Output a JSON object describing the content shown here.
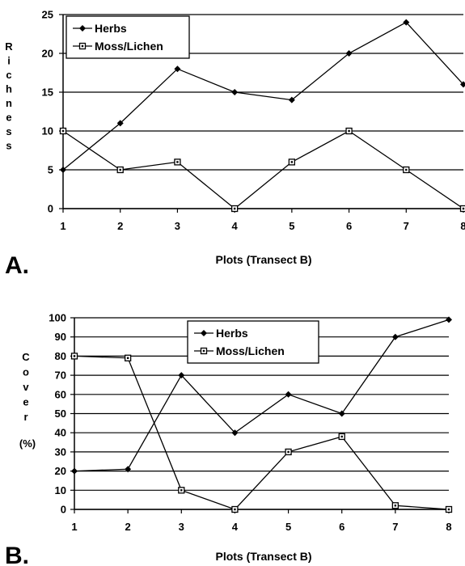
{
  "chart_data": [
    {
      "panel": "A.",
      "type": "line",
      "xlabel": "Plots (Transect B)",
      "ylabel": "Richness",
      "x": [
        1,
        2,
        3,
        4,
        5,
        6,
        7,
        8
      ],
      "xticks": [
        "1",
        "2",
        "3",
        "4",
        "5",
        "6",
        "7",
        "8"
      ],
      "yticks": [
        "0",
        "5",
        "10",
        "15",
        "20",
        "25"
      ],
      "ylim": [
        0,
        25
      ],
      "grid": "horizontal",
      "legend_position": "top-left",
      "series": [
        {
          "name": "Herbs",
          "marker": "filled-diamond",
          "values": [
            5,
            11,
            18,
            15,
            14,
            20,
            24,
            16
          ]
        },
        {
          "name": "Moss/Lichen",
          "marker": "open-square",
          "values": [
            10,
            5,
            6,
            0,
            6,
            10,
            5,
            0
          ]
        }
      ]
    },
    {
      "panel": "B.",
      "type": "line",
      "xlabel": "Plots (Transect B)",
      "ylabel": "Cover",
      "ylabel_unit": "(%)",
      "x": [
        1,
        2,
        3,
        4,
        5,
        6,
        7,
        8
      ],
      "xticks": [
        "1",
        "2",
        "3",
        "4",
        "5",
        "6",
        "7",
        "8"
      ],
      "yticks": [
        "0",
        "10",
        "20",
        "30",
        "40",
        "50",
        "60",
        "70",
        "80",
        "90",
        "100"
      ],
      "ylim": [
        0,
        100
      ],
      "grid": "horizontal",
      "legend_position": "top-center",
      "series": [
        {
          "name": "Herbs",
          "marker": "filled-diamond",
          "values": [
            20,
            21,
            70,
            40,
            60,
            50,
            90,
            99
          ]
        },
        {
          "name": "Moss/Lichen",
          "marker": "open-square",
          "values": [
            80,
            79,
            10,
            0,
            30,
            38,
            2,
            0
          ]
        }
      ]
    }
  ]
}
